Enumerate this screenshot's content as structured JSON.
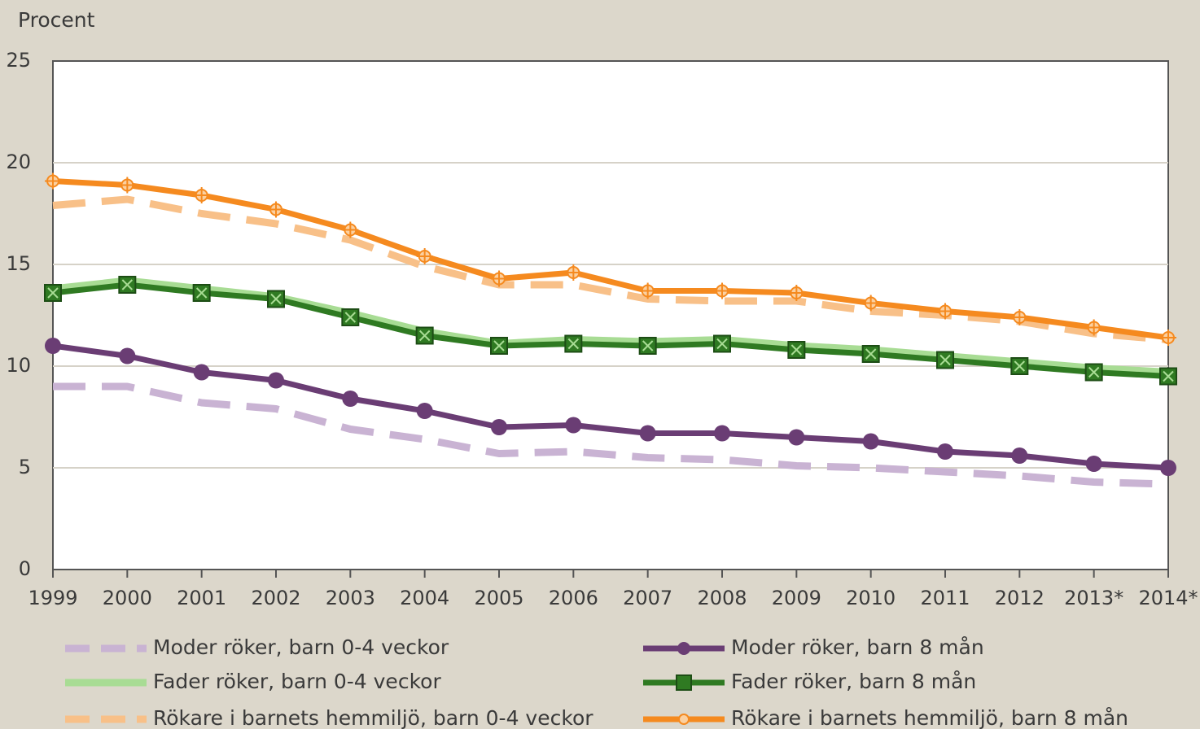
{
  "chart_data": {
    "type": "line",
    "y_axis_label": "Procent",
    "categories": [
      "1999",
      "2000",
      "2001",
      "2002",
      "2003",
      "2004",
      "2005",
      "2006",
      "2007",
      "2008",
      "2009",
      "2010",
      "2011",
      "2012",
      "2013*",
      "2014*"
    ],
    "ylim": [
      0,
      25
    ],
    "yticks": [
      0,
      5,
      10,
      15,
      20,
      25
    ],
    "grid": true,
    "series": [
      {
        "name": "Moder röker, barn 0-4 veckor",
        "color": "#c9b3d3",
        "dashed": true,
        "marker": "none",
        "values": [
          9.0,
          9.0,
          8.2,
          7.9,
          6.9,
          6.4,
          5.7,
          5.8,
          5.5,
          5.4,
          5.1,
          5.0,
          4.8,
          4.6,
          4.3,
          4.2
        ]
      },
      {
        "name": "Moder röker, barn 8 mån",
        "color": "#6a3d74",
        "dashed": false,
        "marker": "circle",
        "values": [
          11.0,
          10.5,
          9.7,
          9.3,
          8.4,
          7.8,
          7.0,
          7.1,
          6.7,
          6.7,
          6.5,
          6.3,
          5.8,
          5.6,
          5.2,
          5.0
        ]
      },
      {
        "name": "Fader röker, barn 0-4 veckor",
        "color": "#a8dc94",
        "dashed": false,
        "marker": "none",
        "values": [
          13.8,
          14.2,
          13.8,
          13.4,
          12.6,
          11.7,
          11.1,
          11.3,
          11.2,
          11.3,
          11.0,
          10.8,
          10.5,
          10.2,
          9.9,
          9.7
        ]
      },
      {
        "name": "Fader röker, barn 8 mån",
        "color": "#2f7a22",
        "dashed": false,
        "marker": "square",
        "values": [
          13.6,
          14.0,
          13.6,
          13.3,
          12.4,
          11.5,
          11.0,
          11.1,
          11.0,
          11.1,
          10.8,
          10.6,
          10.3,
          10.0,
          9.7,
          9.5
        ]
      },
      {
        "name": "Rökare i barnets hemmiljö, barn 0-4 veckor",
        "color": "#f8c088",
        "dashed": true,
        "marker": "none",
        "values": [
          17.9,
          18.2,
          17.5,
          17.0,
          16.2,
          14.9,
          14.0,
          14.0,
          13.3,
          13.2,
          13.2,
          12.7,
          12.5,
          12.2,
          11.6,
          11.3
        ]
      },
      {
        "name": "Rökare i barnets hemmiljö, barn 8 mån",
        "color": "#f58a1f",
        "dashed": false,
        "marker": "star",
        "values": [
          19.1,
          18.9,
          18.4,
          17.7,
          16.7,
          15.4,
          14.3,
          14.6,
          13.7,
          13.7,
          13.6,
          13.1,
          12.7,
          12.4,
          11.9,
          11.4
        ]
      }
    ]
  }
}
